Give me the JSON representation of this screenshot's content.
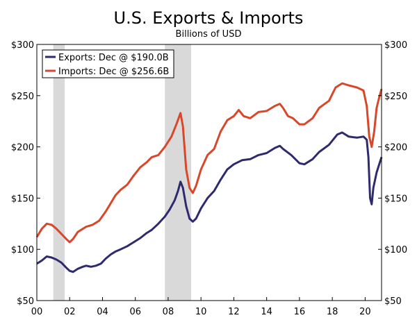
{
  "chart_data": {
    "type": "line",
    "title": "U.S. Exports & Imports",
    "subtitle": "Billions of USD",
    "xlabel": "",
    "ylabel": "",
    "xlim": [
      2000,
      2021
    ],
    "ylim": [
      50,
      300
    ],
    "x_tick_values": [
      2000,
      2002,
      2004,
      2006,
      2008,
      2010,
      2012,
      2014,
      2016,
      2018,
      2020
    ],
    "x_tick_labels": [
      "00",
      "02",
      "04",
      "06",
      "08",
      "10",
      "12",
      "14",
      "16",
      "18",
      "20"
    ],
    "y_tick_values": [
      50,
      100,
      150,
      200,
      250,
      300
    ],
    "y_tick_labels": [
      "$50",
      "$100",
      "$150",
      "$200",
      "$250",
      "$300"
    ],
    "grid": false,
    "legend_position": "top-left",
    "recessions": [
      {
        "start": 2001.0,
        "end": 2001.7
      },
      {
        "start": 2007.8,
        "end": 2009.4
      }
    ],
    "recession_color": "#d9d9d9",
    "series": [
      {
        "name": "Exports: Dec @ $190.0B",
        "color": "#2e2a6e",
        "points": [
          [
            2000.0,
            86
          ],
          [
            2000.3,
            89
          ],
          [
            2000.6,
            93
          ],
          [
            2000.9,
            92
          ],
          [
            2001.2,
            90
          ],
          [
            2001.5,
            87
          ],
          [
            2001.8,
            82
          ],
          [
            2002.0,
            79
          ],
          [
            2002.2,
            78
          ],
          [
            2002.5,
            81
          ],
          [
            2002.8,
            83
          ],
          [
            2003.0,
            84
          ],
          [
            2003.3,
            83
          ],
          [
            2003.6,
            84
          ],
          [
            2003.9,
            86
          ],
          [
            2004.2,
            91
          ],
          [
            2004.5,
            95
          ],
          [
            2004.8,
            98
          ],
          [
            2005.1,
            100
          ],
          [
            2005.5,
            103
          ],
          [
            2005.9,
            107
          ],
          [
            2006.3,
            111
          ],
          [
            2006.7,
            116
          ],
          [
            2007.0,
            119
          ],
          [
            2007.4,
            125
          ],
          [
            2007.8,
            132
          ],
          [
            2008.1,
            139
          ],
          [
            2008.4,
            148
          ],
          [
            2008.6,
            157
          ],
          [
            2008.75,
            166
          ],
          [
            2008.9,
            160
          ],
          [
            2009.1,
            142
          ],
          [
            2009.3,
            130
          ],
          [
            2009.5,
            127
          ],
          [
            2009.7,
            130
          ],
          [
            2010.0,
            140
          ],
          [
            2010.4,
            150
          ],
          [
            2010.8,
            157
          ],
          [
            2011.2,
            168
          ],
          [
            2011.6,
            178
          ],
          [
            2012.0,
            183
          ],
          [
            2012.5,
            187
          ],
          [
            2013.0,
            188
          ],
          [
            2013.5,
            192
          ],
          [
            2014.0,
            194
          ],
          [
            2014.5,
            199
          ],
          [
            2014.8,
            201
          ],
          [
            2015.0,
            198
          ],
          [
            2015.5,
            192
          ],
          [
            2016.0,
            184
          ],
          [
            2016.3,
            183
          ],
          [
            2016.8,
            188
          ],
          [
            2017.2,
            195
          ],
          [
            2017.8,
            202
          ],
          [
            2018.3,
            212
          ],
          [
            2018.6,
            214
          ],
          [
            2019.0,
            210
          ],
          [
            2019.5,
            209
          ],
          [
            2019.9,
            210
          ],
          [
            2020.1,
            207
          ],
          [
            2020.2,
            190
          ],
          [
            2020.3,
            150
          ],
          [
            2020.4,
            144
          ],
          [
            2020.5,
            160
          ],
          [
            2020.7,
            175
          ],
          [
            2020.9,
            185
          ],
          [
            2021.0,
            190
          ]
        ]
      },
      {
        "name": "Imports: Dec @ $256.6B",
        "color": "#d9472b",
        "points": [
          [
            2000.0,
            112
          ],
          [
            2000.3,
            120
          ],
          [
            2000.6,
            125
          ],
          [
            2000.9,
            124
          ],
          [
            2001.2,
            120
          ],
          [
            2001.5,
            115
          ],
          [
            2001.8,
            110
          ],
          [
            2002.0,
            107
          ],
          [
            2002.2,
            110
          ],
          [
            2002.5,
            117
          ],
          [
            2002.8,
            120
          ],
          [
            2003.0,
            122
          ],
          [
            2003.4,
            124
          ],
          [
            2003.8,
            128
          ],
          [
            2004.2,
            137
          ],
          [
            2004.5,
            145
          ],
          [
            2004.8,
            153
          ],
          [
            2005.1,
            158
          ],
          [
            2005.5,
            163
          ],
          [
            2005.9,
            172
          ],
          [
            2006.3,
            180
          ],
          [
            2006.7,
            185
          ],
          [
            2007.0,
            190
          ],
          [
            2007.4,
            192
          ],
          [
            2007.8,
            200
          ],
          [
            2008.2,
            210
          ],
          [
            2008.5,
            222
          ],
          [
            2008.75,
            233
          ],
          [
            2008.9,
            220
          ],
          [
            2009.1,
            178
          ],
          [
            2009.3,
            160
          ],
          [
            2009.5,
            155
          ],
          [
            2009.7,
            162
          ],
          [
            2010.0,
            178
          ],
          [
            2010.4,
            192
          ],
          [
            2010.8,
            198
          ],
          [
            2011.2,
            215
          ],
          [
            2011.6,
            226
          ],
          [
            2012.0,
            230
          ],
          [
            2012.3,
            236
          ],
          [
            2012.6,
            230
          ],
          [
            2013.0,
            228
          ],
          [
            2013.5,
            234
          ],
          [
            2014.0,
            235
          ],
          [
            2014.5,
            240
          ],
          [
            2014.8,
            242
          ],
          [
            2015.0,
            238
          ],
          [
            2015.3,
            230
          ],
          [
            2015.6,
            228
          ],
          [
            2016.0,
            222
          ],
          [
            2016.3,
            222
          ],
          [
            2016.8,
            228
          ],
          [
            2017.2,
            238
          ],
          [
            2017.8,
            245
          ],
          [
            2018.2,
            258
          ],
          [
            2018.6,
            262
          ],
          [
            2019.0,
            260
          ],
          [
            2019.5,
            258
          ],
          [
            2019.9,
            255
          ],
          [
            2020.1,
            240
          ],
          [
            2020.25,
            210
          ],
          [
            2020.4,
            200
          ],
          [
            2020.55,
            215
          ],
          [
            2020.7,
            238
          ],
          [
            2020.85,
            248
          ],
          [
            2021.0,
            256.6
          ]
        ]
      }
    ]
  }
}
